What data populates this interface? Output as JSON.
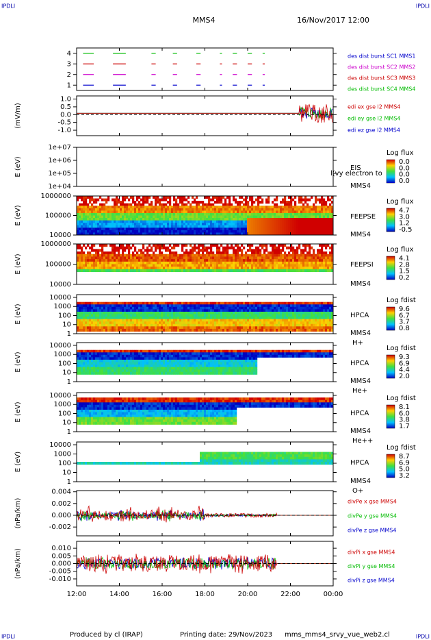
{
  "header": {
    "corner_tl": "IPDLI",
    "corner_tr": "IPDLI",
    "corner_bl": "IPDLI",
    "corner_br": "IPDLI",
    "spacecraft": "MMS4",
    "date": "16/Nov/2017 12:00"
  },
  "footer": {
    "produced": "Produced by cl (IRAP)",
    "printing": "Printing date: 29/Nov/2023",
    "file": "mms_mms4_srvy_vue_web2.cl"
  },
  "time_axis": {
    "xlim": [
      12,
      24
    ],
    "xticks": [
      {
        "value": 12,
        "label": "12:00"
      },
      {
        "value": 14,
        "label": "14:00"
      },
      {
        "value": 16,
        "label": "16:00"
      },
      {
        "value": 18,
        "label": "18:00"
      },
      {
        "value": 20,
        "label": "20:00"
      },
      {
        "value": 22,
        "label": "22:00"
      },
      {
        "value": 24,
        "label": "00:00"
      }
    ]
  },
  "chart_data": [
    {
      "type": "burst",
      "ylim": [
        0.5,
        4.5
      ],
      "yticks": [
        1,
        2,
        3,
        4
      ],
      "series": [
        {
          "name": "des dist burst SC1 MMS1",
          "color": "#0000cc"
        },
        {
          "name": "des dist burst SC2 MMS2",
          "color": "#cc00cc"
        },
        {
          "name": "des dist burst SC3 MMS3",
          "color": "#cc0000"
        },
        {
          "name": "des dist burst SC4 MMS4",
          "color": "#00bb00"
        }
      ]
    },
    {
      "type": "line",
      "ylabel": "(mV/m)",
      "ylim": [
        -1.35,
        1.2
      ],
      "yticks": [
        {
          "value": 1,
          "label": "1.0"
        },
        {
          "value": 0.5,
          "label": "0.5"
        },
        {
          "value": 0,
          "label": "0.0"
        },
        {
          "value": -0.5,
          "label": "-0.5"
        },
        {
          "value": -1,
          "label": "-1.0"
        }
      ],
      "series": [
        {
          "name": "edi ex gse l2 MMS4",
          "color": "#cc0000"
        },
        {
          "name": "edi ey gse l2 MMS4",
          "color": "#00bb00"
        },
        {
          "name": "edi ez gse l2 MMS4",
          "color": "#0000cc"
        }
      ]
    },
    {
      "type": "spectrogram",
      "kind": "empty",
      "ylabel": "E (eV)",
      "log": true,
      "ylim": [
        10000,
        10000000
      ],
      "yticks": [
        {
          "value": 10000000,
          "label": "1e+07"
        },
        {
          "value": 1000000,
          "label": "1e+06"
        },
        {
          "value": 100000,
          "label": "1e+05"
        },
        {
          "value": 10000,
          "label": "1e+04"
        }
      ],
      "instrument": "EIS",
      "spacecraft": "MMS4",
      "overlay": "l(vy electron to",
      "colorbar": {
        "title": "Log flux",
        "ticks": [
          "0.0",
          "0.0",
          "0.0",
          "0.0"
        ]
      }
    },
    {
      "type": "spectrogram",
      "kind": "feepse",
      "ylabel": "E (eV)",
      "log": true,
      "ylim": [
        10000,
        1000000
      ],
      "yticks": [
        1000000,
        100000,
        10000
      ],
      "instrument": "FEEPSE",
      "spacecraft": "MMS4",
      "colorbar": {
        "title": "Log flux",
        "ticks": [
          "4.7",
          "3.0",
          "1.2",
          "-0.5"
        ]
      }
    },
    {
      "type": "spectrogram",
      "kind": "feepsi",
      "ylabel": "E (eV)",
      "log": true,
      "ylim": [
        10000,
        1000000
      ],
      "yticks": [
        1000000,
        100000,
        10000
      ],
      "instrument": "FEEPSI",
      "spacecraft": "MMS4",
      "colorbar": {
        "title": "Log flux",
        "ticks": [
          "4.1",
          "2.8",
          "1.5",
          "0.2"
        ]
      }
    },
    {
      "type": "spectrogram",
      "kind": "h",
      "ylabel": "E (eV)",
      "log": true,
      "ylim": [
        1,
        20000
      ],
      "yticks": [
        10000,
        1000,
        100,
        10,
        1
      ],
      "instrument": "HPCA",
      "spacecraft": "MMS4",
      "species": "H+",
      "colorbar": {
        "title": "Log fdist",
        "ticks": [
          "9.6",
          "6.7",
          "3.7",
          "0.8"
        ]
      }
    },
    {
      "type": "spectrogram",
      "kind": "he",
      "ylabel": "E (eV)",
      "log": true,
      "ylim": [
        1,
        20000
      ],
      "yticks": [
        10000,
        1000,
        100,
        10,
        1
      ],
      "instrument": "HPCA",
      "spacecraft": "MMS4",
      "species": "He+",
      "colorbar": {
        "title": "Log fdist",
        "ticks": [
          "9.3",
          "6.9",
          "4.4",
          "2.0"
        ]
      }
    },
    {
      "type": "spectrogram",
      "kind": "hepp",
      "ylabel": "E (eV)",
      "log": true,
      "ylim": [
        1,
        20000
      ],
      "yticks": [
        10000,
        1000,
        100,
        10,
        1
      ],
      "instrument": "HPCA",
      "spacecraft": "MMS4",
      "species": "He++",
      "colorbar": {
        "title": "Log fdist",
        "ticks": [
          "8.1",
          "6.0",
          "3.8",
          "1.7"
        ]
      }
    },
    {
      "type": "spectrogram",
      "kind": "o",
      "ylabel": "E (eV)",
      "log": true,
      "ylim": [
        1,
        20000
      ],
      "yticks": [
        10000,
        1000,
        100,
        10,
        1
      ],
      "instrument": "HPCA",
      "spacecraft": "MMS4",
      "species": "O+",
      "colorbar": {
        "title": "Log fdist",
        "ticks": [
          "8.7",
          "6.9",
          "5.0",
          "3.2"
        ]
      }
    },
    {
      "type": "line",
      "kind": "pe",
      "ylabel": "(nPa/km)",
      "ylim": [
        -0.0035,
        0.0042
      ],
      "yticks": [
        {
          "value": 0.004,
          "label": "0.004"
        },
        {
          "value": 0.002,
          "label": "0.002"
        },
        {
          "value": 0,
          "label": "0.000"
        },
        {
          "value": -0.002,
          "label": "-0.002"
        }
      ],
      "series": [
        {
          "name": "divPe x gse MMS4",
          "color": "#cc0000"
        },
        {
          "name": "divPe y gse MMS4",
          "color": "#00bb00"
        },
        {
          "name": "divPe z gse MMS4",
          "color": "#0000cc"
        }
      ]
    },
    {
      "type": "line",
      "kind": "pi",
      "ylabel": "(nPa/km)",
      "ylim": [
        -0.0145,
        0.0145
      ],
      "yticks": [
        {
          "value": 0.01,
          "label": "0.010"
        },
        {
          "value": 0.005,
          "label": "0.005"
        },
        {
          "value": 0,
          "label": "0.000"
        },
        {
          "value": -0.005,
          "label": "-0.005"
        },
        {
          "value": -0.01,
          "label": "-0.010"
        }
      ],
      "series": [
        {
          "name": "divPi x gse MMS4",
          "color": "#cc0000"
        },
        {
          "name": "divPi y gse MMS4",
          "color": "#00bb00"
        },
        {
          "name": "divPi z gse MMS4",
          "color": "#0000cc"
        }
      ]
    }
  ]
}
